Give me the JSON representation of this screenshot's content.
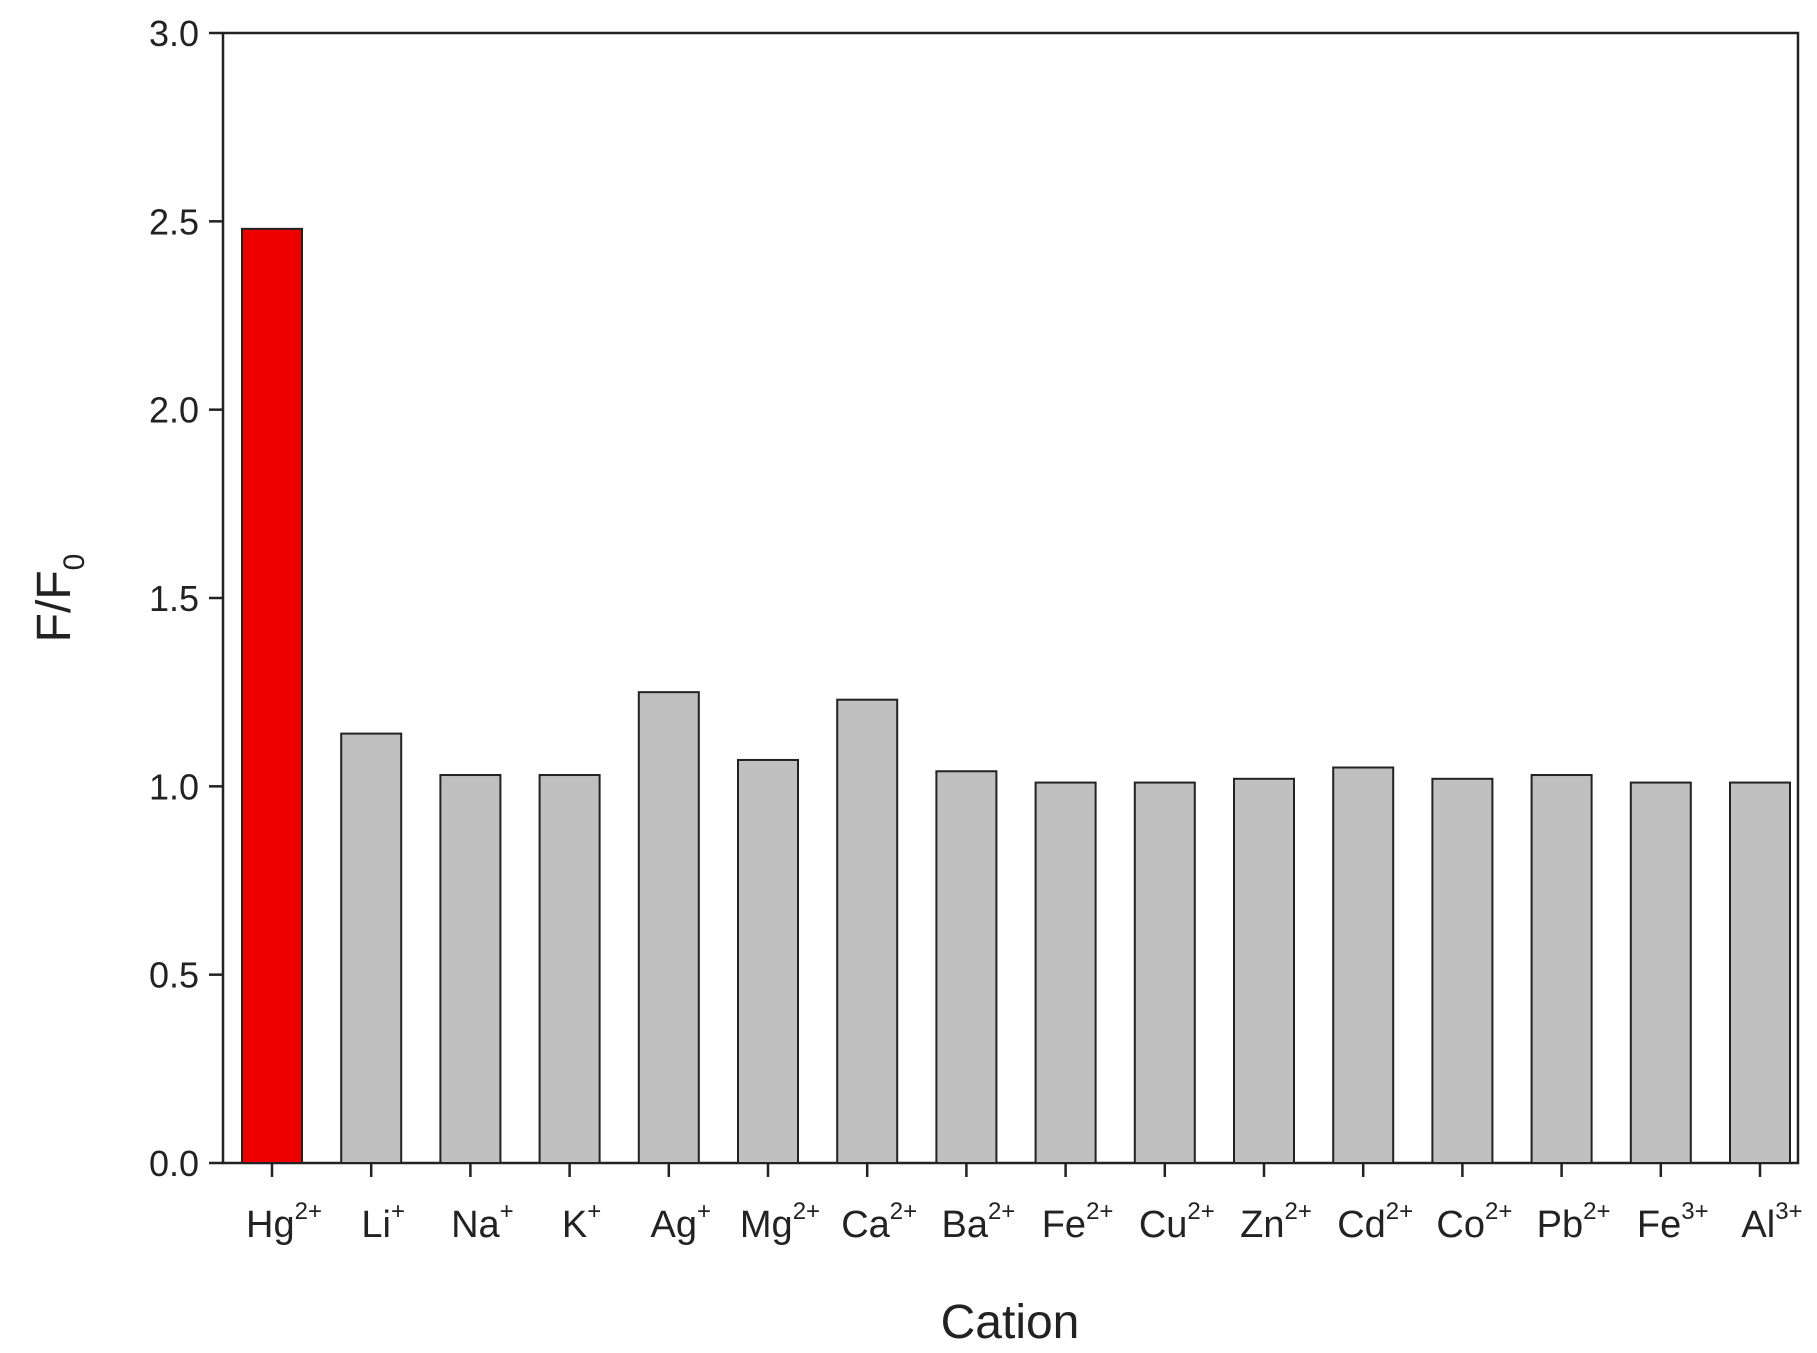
{
  "chart_data": {
    "type": "bar",
    "xlabel": "Cation",
    "ylabel": {
      "main": "F/F",
      "sub": "0"
    },
    "ylim": [
      0,
      3.0
    ],
    "yticks": [
      "0.0",
      "0.5",
      "1.0",
      "1.5",
      "2.0",
      "2.5",
      "3.0"
    ],
    "grid": false,
    "legend": "none",
    "categories": [
      {
        "base": "Hg",
        "charge": "2+"
      },
      {
        "base": "Li",
        "charge": "+"
      },
      {
        "base": "Na",
        "charge": "+"
      },
      {
        "base": "K",
        "charge": "+"
      },
      {
        "base": "Ag",
        "charge": "+"
      },
      {
        "base": "Mg",
        "charge": "2+"
      },
      {
        "base": "Ca",
        "charge": "2+"
      },
      {
        "base": "Ba",
        "charge": "2+"
      },
      {
        "base": "Fe",
        "charge": "2+"
      },
      {
        "base": "Cu",
        "charge": "2+"
      },
      {
        "base": "Zn",
        "charge": "2+"
      },
      {
        "base": "Cd",
        "charge": "2+"
      },
      {
        "base": "Co",
        "charge": "2+"
      },
      {
        "base": "Pb",
        "charge": "2+"
      },
      {
        "base": "Fe",
        "charge": "3+"
      },
      {
        "base": "Al",
        "charge": "3+"
      }
    ],
    "values": [
      2.48,
      1.14,
      1.03,
      1.03,
      1.25,
      1.07,
      1.23,
      1.04,
      1.01,
      1.01,
      1.02,
      1.05,
      1.02,
      1.03,
      1.01,
      1.01
    ],
    "colors": {
      "highlight": "#ee0000",
      "default": "#c0c0c0",
      "edge": "#222222"
    }
  }
}
